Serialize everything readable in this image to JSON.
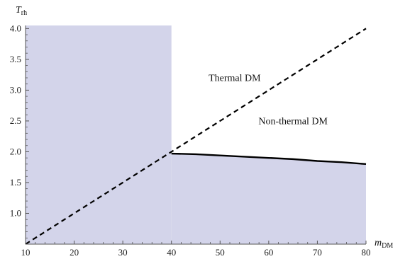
{
  "chart_data": {
    "type": "line",
    "xlabel": {
      "main": "m",
      "sub": "DM"
    },
    "ylabel": {
      "main": "T",
      "sub": "rh"
    },
    "xlim": [
      10,
      80
    ],
    "ylim": [
      0.5,
      4.05
    ],
    "x_ticks": [
      10,
      20,
      30,
      40,
      50,
      60,
      70,
      80
    ],
    "y_ticks": [
      1.0,
      1.5,
      2.0,
      2.5,
      3.0,
      3.5,
      4.0
    ],
    "x_tick_labels": [
      "10",
      "20",
      "30",
      "40",
      "50",
      "60",
      "70",
      "80"
    ],
    "y_tick_labels": [
      "1.0",
      "1.5",
      "2.0",
      "2.5",
      "3.0",
      "3.5",
      "4.0"
    ],
    "grid": false,
    "colors": {
      "shade": "#d3d4ea",
      "line": "#000000",
      "axis": "#555555"
    },
    "regions": [
      {
        "name": "shaded-left",
        "x": [
          10,
          40
        ],
        "y": [
          0.5,
          4.05
        ]
      },
      {
        "name": "shaded-bottom",
        "x": [
          40,
          80
        ],
        "y_lower": 0.5,
        "upper_boundary": "solid-boundary"
      }
    ],
    "series": [
      {
        "id": "dashed-diagonal",
        "style": "dashed",
        "x": [
          10,
          80
        ],
        "y": [
          0.5,
          4.0
        ]
      },
      {
        "id": "solid-boundary",
        "style": "solid",
        "x": [
          40,
          45,
          50,
          55,
          60,
          65,
          70,
          75,
          80
        ],
        "y": [
          1.97,
          1.96,
          1.94,
          1.92,
          1.9,
          1.88,
          1.85,
          1.83,
          1.8
        ]
      }
    ],
    "annotations": [
      {
        "text": "Thermal DM",
        "x": 53,
        "y": 3.15
      },
      {
        "text": "Non-thermal DM",
        "x": 65,
        "y": 2.45
      }
    ]
  }
}
